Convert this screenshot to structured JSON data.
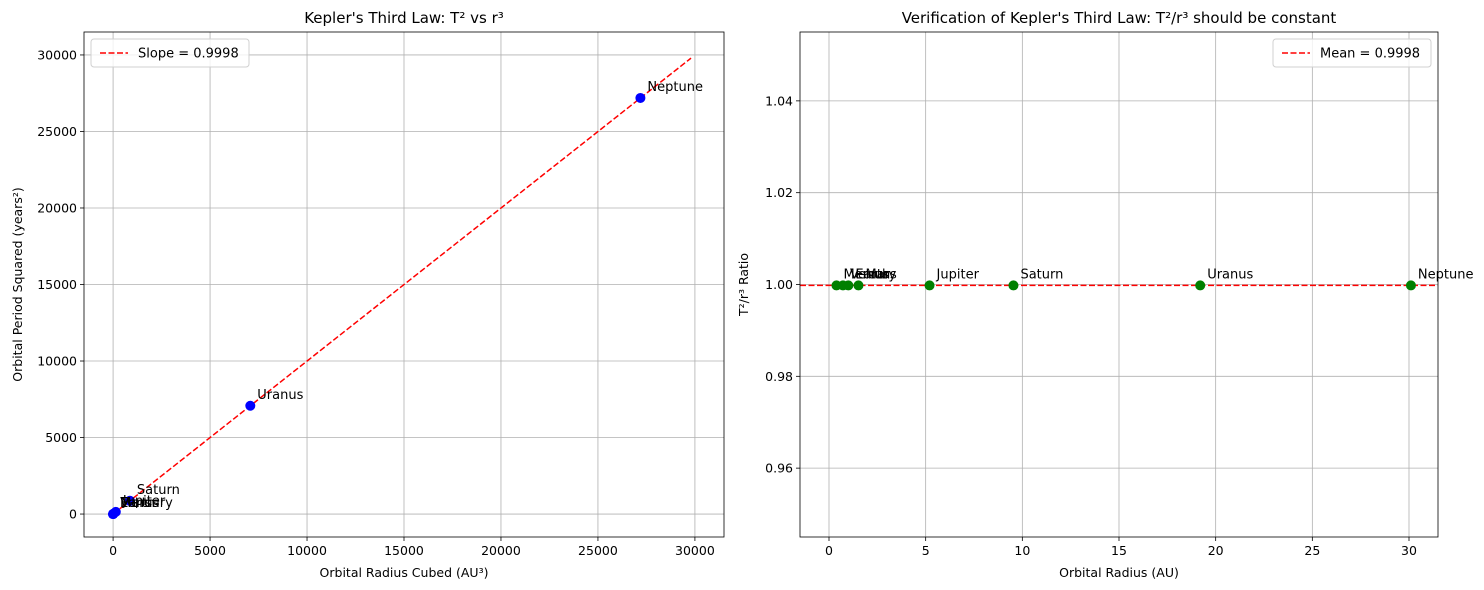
{
  "chart_data": [
    {
      "type": "scatter",
      "title": "Kepler's Third Law: T² vs r³",
      "xlabel": "Orbital Radius Cubed (AU³)",
      "ylabel": "Orbital Period Squared (years²)",
      "xlim": [
        -1500,
        31500
      ],
      "ylim": [
        -1500,
        31500
      ],
      "xticks": [
        0,
        5000,
        10000,
        15000,
        20000,
        25000,
        30000
      ],
      "yticks": [
        0,
        5000,
        10000,
        15000,
        20000,
        25000,
        30000
      ],
      "grid": true,
      "legend_position": "upper left",
      "series": [
        {
          "kind": "scatter",
          "color": "#0000ff",
          "points": [
            {
              "label": "Mercury",
              "x": 0.058,
              "y": 0.058
            },
            {
              "label": "Venus",
              "x": 0.378,
              "y": 0.378
            },
            {
              "label": "Earth",
              "x": 1.0,
              "y": 1.0
            },
            {
              "label": "Mars",
              "x": 3.54,
              "y": 3.54
            },
            {
              "label": "Jupiter",
              "x": 140.6,
              "y": 140.6
            },
            {
              "label": "Saturn",
              "x": 867.5,
              "y": 867.5
            },
            {
              "label": "Uranus",
              "x": 7075,
              "y": 7075
            },
            {
              "label": "Neptune",
              "x": 27190,
              "y": 27190
            }
          ]
        },
        {
          "kind": "line",
          "name": "Slope = 0.9998",
          "color": "#ff0000",
          "dash": "dashed",
          "x": [
            0,
            29800
          ],
          "y": [
            0,
            29794
          ]
        }
      ]
    },
    {
      "type": "scatter",
      "title": "Verification of Kepler's Third Law: T²/r³ should be constant",
      "xlabel": "Orbital Radius (AU)",
      "ylabel": "T²/r³ Ratio",
      "xlim": [
        -1.5,
        31.5
      ],
      "ylim": [
        0.945,
        1.055
      ],
      "xticks": [
        0,
        5,
        10,
        15,
        20,
        25,
        30
      ],
      "yticks": [
        0.96,
        0.98,
        1.0,
        1.02,
        1.04
      ],
      "yticklabels": [
        "0.96",
        "0.98",
        "1.00",
        "1.02",
        "1.04"
      ],
      "grid": true,
      "legend_position": "upper right",
      "series": [
        {
          "kind": "scatter",
          "color": "#008000",
          "points": [
            {
              "label": "Mercury",
              "x": 0.387,
              "y": 0.9998
            },
            {
              "label": "Venus",
              "x": 0.723,
              "y": 0.9998
            },
            {
              "label": "Earth",
              "x": 1.0,
              "y": 0.9998
            },
            {
              "label": "Mars",
              "x": 1.524,
              "y": 0.9998
            },
            {
              "label": "Jupiter",
              "x": 5.2,
              "y": 0.9998
            },
            {
              "label": "Saturn",
              "x": 9.54,
              "y": 0.9998
            },
            {
              "label": "Uranus",
              "x": 19.2,
              "y": 0.9998
            },
            {
              "label": "Neptune",
              "x": 30.1,
              "y": 0.9998
            }
          ]
        },
        {
          "kind": "hline",
          "name": "Mean = 0.9998",
          "color": "#ff0000",
          "dash": "dashed",
          "y": 0.9998
        }
      ]
    }
  ]
}
